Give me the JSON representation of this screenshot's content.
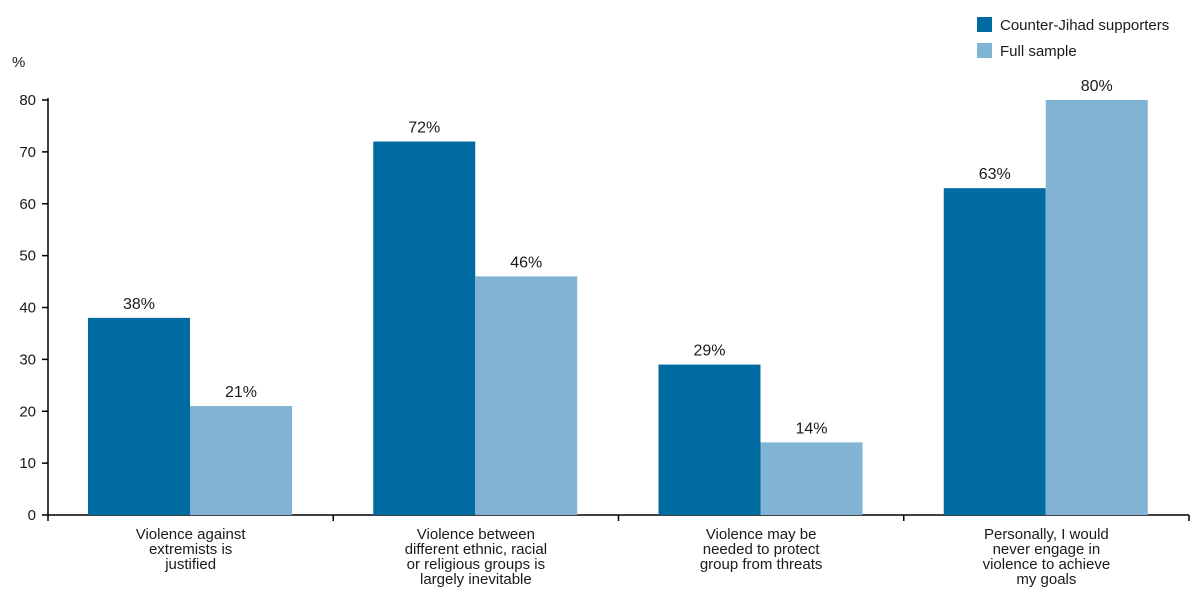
{
  "chart_data": {
    "type": "bar",
    "ylabel": "%",
    "ylim": [
      0,
      80
    ],
    "yticks": [
      0,
      10,
      20,
      30,
      40,
      50,
      60,
      70,
      80
    ],
    "grid": false,
    "legend_position": "top-right",
    "categories": [
      [
        "Violence against",
        "extremists is",
        "justified"
      ],
      [
        "Violence between",
        "different ethnic, racial",
        "or religious groups is",
        "largely inevitable"
      ],
      [
        "Violence may be",
        "needed to protect",
        "group from threats"
      ],
      [
        "Personally, I would",
        "never engage in",
        "violence to achieve",
        "my goals"
      ]
    ],
    "series": [
      {
        "name": "Counter-Jihad supporters",
        "color": "#006ba1",
        "values": [
          38,
          72,
          29,
          63
        ],
        "labels": [
          "38%",
          "72%",
          "29%",
          "63%"
        ]
      },
      {
        "name": "Full sample",
        "color": "#80b3d4",
        "values": [
          21,
          46,
          14,
          80
        ],
        "labels": [
          "21%",
          "46%",
          "14%",
          "80%"
        ]
      }
    ]
  }
}
